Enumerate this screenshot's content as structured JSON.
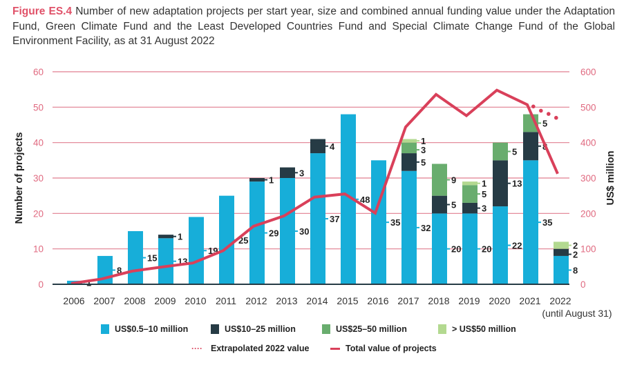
{
  "caption": {
    "figure_label": "Figure ES.4",
    "text": " Number of new adaptation projects per start year, size and combined annual funding value under the Adaptation Fund, Green Climate Fund and the Least Developed Countries Fund and Special Climate Change Fund of the Global Environment Facility, as at 31 August 2022"
  },
  "colors": {
    "s1": "#17aed9",
    "s2": "#263b45",
    "s3": "#69ad6e",
    "s4": "#b3d990",
    "line": "#d9405a",
    "grid": "#e07d8f",
    "axis_tick_text": "#e06a80"
  },
  "chart_data": {
    "type": "bar",
    "title": "Number of new adaptation projects per start year, size and combined annual funding value",
    "xlabel": "",
    "ylabel": "Number of projects",
    "y2label": "US$ million",
    "ylim": [
      0,
      60
    ],
    "y2lim": [
      0,
      600
    ],
    "yticks": [
      0,
      10,
      20,
      30,
      40,
      50,
      60
    ],
    "y2ticks": [
      0,
      100,
      200,
      300,
      400,
      500,
      600
    ],
    "grid": true,
    "legend_position": "bottom",
    "categories": [
      "2006",
      "2007",
      "2008",
      "2009",
      "2010",
      "2011",
      "2012",
      "2013",
      "2014",
      "2015",
      "2016",
      "2017",
      "2018",
      "2019",
      "2020",
      "2021",
      "2022"
    ],
    "category_note": {
      "index": 16,
      "text": "(until August 31)"
    },
    "stacked": true,
    "series": [
      {
        "name": "US$0.5–10 million",
        "color_key": "s1",
        "values": [
          1,
          8,
          15,
          13,
          19,
          25,
          29,
          30,
          37,
          48,
          35,
          32,
          20,
          20,
          22,
          35,
          8
        ]
      },
      {
        "name": "US$10–25 million",
        "color_key": "s2",
        "values": [
          0,
          0,
          0,
          1,
          0,
          0,
          1,
          3,
          4,
          0,
          0,
          5,
          5,
          3,
          13,
          8,
          2
        ]
      },
      {
        "name": "US$25–50 million",
        "color_key": "s3",
        "values": [
          0,
          0,
          0,
          0,
          0,
          0,
          0,
          0,
          0,
          0,
          0,
          3,
          9,
          5,
          5,
          5,
          0
        ]
      },
      {
        "name": "> US$50 million",
        "color_key": "s4",
        "values": [
          0,
          0,
          0,
          0,
          0,
          0,
          0,
          0,
          0,
          0,
          0,
          1,
          0,
          1,
          0,
          0,
          2
        ]
      }
    ],
    "line_series": {
      "name": "Total value of projects",
      "axis": "right",
      "values": [
        2,
        15,
        37,
        49,
        60,
        95,
        164,
        193,
        246,
        255,
        201,
        444,
        536,
        476,
        548,
        507,
        312
      ]
    },
    "extrapolated": {
      "name": "Extrapolated 2022 value",
      "axis": "right",
      "x_positions": [
        15.2,
        15.45,
        15.7,
        15.95
      ],
      "values": [
        502,
        490,
        481,
        470
      ]
    }
  },
  "legend": {
    "items": [
      {
        "label": "US$0.5–10 million",
        "color_key": "s1"
      },
      {
        "label": "US$10–25 million",
        "color_key": "s2"
      },
      {
        "label": "US$25–50 million",
        "color_key": "s3"
      },
      {
        "label": "> US$50 million",
        "color_key": "s4"
      }
    ],
    "extrapolated_label": "Extrapolated 2022 value",
    "dots_glyph": "····",
    "line_label": "Total value of projects"
  }
}
